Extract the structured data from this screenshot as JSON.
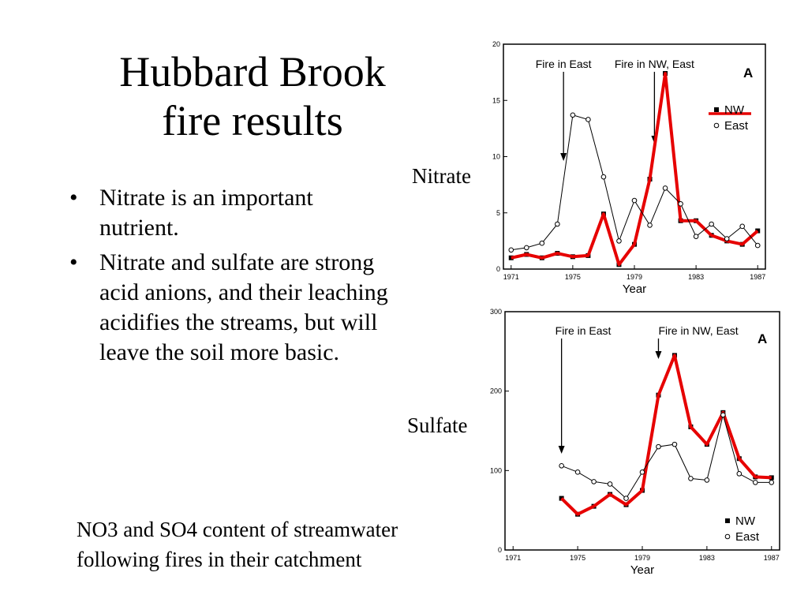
{
  "slide": {
    "title_line1": "Hubbard Brook",
    "title_line2": "fire results",
    "bullets": [
      "Nitrate is an important nutrient.",
      "Nitrate and sulfate are strong acid anions, and their leaching acidifies the streams, but will leave the soil more basic."
    ],
    "caption_line1": "NO3 and SO4 content of streamwater",
    "caption_line2": "following fires in their catchment",
    "label_nitrate": "Nitrate",
    "label_sulfate": "Sulfate"
  },
  "colors": {
    "nw_highlight": "#e60000",
    "series_line": "#000000"
  },
  "chart_data": [
    {
      "type": "line",
      "id": "nitrate",
      "title": "",
      "panel_label": "A",
      "xlabel": "Year",
      "ylabel": "",
      "xlim": [
        1970.5,
        1987.5
      ],
      "ylim": [
        0,
        20
      ],
      "xticks": [
        1971,
        1975,
        1979,
        1983,
        1987
      ],
      "yticks": [
        0,
        5,
        10,
        15,
        20
      ],
      "annotations": [
        {
          "text": "Fire in East",
          "x": 1974.4
        },
        {
          "text": "Fire in NW, East",
          "x": 1980.3
        }
      ],
      "legend": {
        "position": "right",
        "items": [
          "NW",
          "East"
        ]
      },
      "series": [
        {
          "name": "NW",
          "highlight": true,
          "x": [
            1971,
            1972,
            1973,
            1974,
            1975,
            1976,
            1977,
            1978,
            1979,
            1980,
            1981,
            1982,
            1983,
            1984,
            1985,
            1986,
            1987
          ],
          "values": [
            1.0,
            1.3,
            1.0,
            1.4,
            1.1,
            1.2,
            4.9,
            0.4,
            2.2,
            8.0,
            17.4,
            4.3,
            4.3,
            3.0,
            2.5,
            2.2,
            3.4
          ]
        },
        {
          "name": "East",
          "x": [
            1971,
            1972,
            1973,
            1974,
            1975,
            1976,
            1977,
            1978,
            1979,
            1980,
            1981,
            1982,
            1983,
            1984,
            1985,
            1986,
            1987
          ],
          "values": [
            1.7,
            1.9,
            2.3,
            4.0,
            13.7,
            13.3,
            8.2,
            2.5,
            6.1,
            3.9,
            7.2,
            5.8,
            2.9,
            4.0,
            2.7,
            3.8,
            2.1
          ]
        }
      ]
    },
    {
      "type": "line",
      "id": "sulfate",
      "title": "",
      "panel_label": "A",
      "xlabel": "Year",
      "ylabel": "",
      "xlim": [
        1970.5,
        1987.5
      ],
      "ylim": [
        0,
        300
      ],
      "xticks": [
        1971,
        1975,
        1979,
        1983,
        1987
      ],
      "yticks": [
        0,
        100,
        200,
        300
      ],
      "annotations": [
        {
          "text": "Fire in East",
          "x": 1974.0
        },
        {
          "text": "Fire in NW, East",
          "x": 1980.0
        }
      ],
      "legend": {
        "position": "bottom-right",
        "items": [
          "NW",
          "East"
        ]
      },
      "series": [
        {
          "name": "NW",
          "highlight": true,
          "x": [
            1974,
            1975,
            1976,
            1977,
            1978,
            1979,
            1980,
            1981,
            1982,
            1983,
            1984,
            1985,
            1986,
            1987
          ],
          "values": [
            65,
            45,
            55,
            70,
            57,
            75,
            195,
            245,
            155,
            133,
            173,
            115,
            92,
            91
          ]
        },
        {
          "name": "East",
          "x": [
            1974,
            1975,
            1976,
            1977,
            1978,
            1979,
            1980,
            1981,
            1982,
            1983,
            1984,
            1985,
            1986,
            1987
          ],
          "values": [
            106,
            98,
            86,
            83,
            65,
            98,
            130,
            133,
            90,
            88,
            170,
            96,
            85,
            85
          ]
        }
      ]
    }
  ]
}
